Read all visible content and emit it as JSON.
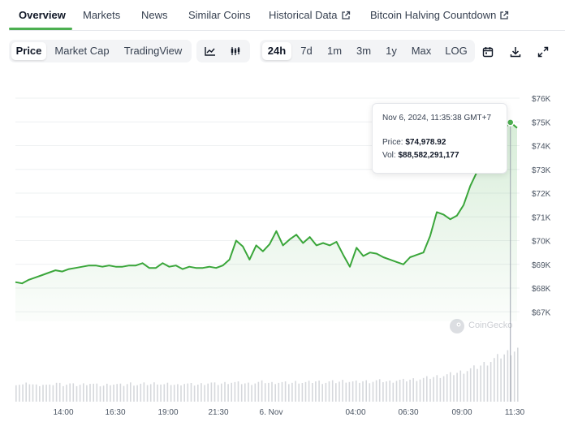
{
  "tabs": [
    {
      "label": "Overview",
      "active": true
    },
    {
      "label": "Markets"
    },
    {
      "label": "News"
    },
    {
      "label": "Similar Coins"
    },
    {
      "label": "Historical Data",
      "external": true
    },
    {
      "label": "Bitcoin Halving Countdown",
      "external": true
    }
  ],
  "toolbar": {
    "metrics": [
      "Price",
      "Market Cap",
      "TradingView"
    ],
    "metric_selected": "Price",
    "chart_style_icons": [
      "line-chart-icon",
      "candlestick-chart-icon"
    ],
    "ranges": [
      "24h",
      "7d",
      "1m",
      "3m",
      "1y",
      "Max",
      "LOG"
    ],
    "range_selected": "24h",
    "action_icons": [
      "calendar-icon",
      "download-icon",
      "expand-icon"
    ]
  },
  "tooltip": {
    "date": "Nov 6, 2024, 11:35:38 GMT+7",
    "price_label": "Price:",
    "price_value": "$74,978.92",
    "vol_label": "Vol:",
    "vol_value": "$88,582,291,177"
  },
  "watermark": "CoinGecko",
  "colors": {
    "accent": "#4caf50",
    "line": "#3aa63a",
    "fill": "#e8f5e9",
    "volume": "#d1d5db"
  },
  "chart_data": {
    "type": "area",
    "series": [
      {
        "values": [
          68.25,
          68.2,
          68.35,
          68.45,
          68.55,
          68.65,
          68.75,
          68.7,
          68.8,
          68.85,
          68.9,
          68.95,
          68.95,
          68.9,
          68.95,
          68.9,
          68.9,
          68.95,
          68.95,
          69.05,
          68.85,
          68.85,
          69.05,
          68.9,
          68.95,
          68.8,
          68.9,
          68.85,
          68.85,
          68.9,
          68.85,
          68.95,
          69.2,
          70.0,
          69.75,
          69.2,
          69.8,
          69.55,
          69.85,
          70.4,
          69.8,
          70.05,
          70.25,
          69.9,
          70.15,
          69.8,
          69.9,
          69.8,
          69.95,
          69.4,
          68.9,
          69.7,
          69.35,
          69.5,
          69.45,
          69.3,
          69.2,
          69.1,
          69.0,
          69.3,
          69.4,
          69.5,
          70.2,
          71.2,
          71.1,
          70.9,
          71.05,
          71.5,
          72.3,
          72.9,
          73.2,
          73.7,
          74.2,
          74.7,
          74.98,
          74.75
        ]
      }
    ],
    "volume_relative": [
      0.34,
      0.32,
      0.35,
      0.31,
      0.33,
      0.3,
      0.36,
      0.32,
      0.34,
      0.31,
      0.33,
      0.35,
      0.32,
      0.3,
      0.34,
      0.33,
      0.31,
      0.35,
      0.32,
      0.34,
      0.33,
      0.36,
      0.32,
      0.34,
      0.31,
      0.35,
      0.33,
      0.32,
      0.34,
      0.36,
      0.33,
      0.35,
      0.37,
      0.36,
      0.35,
      0.34,
      0.36,
      0.38,
      0.35,
      0.37,
      0.36,
      0.35,
      0.38,
      0.36,
      0.37,
      0.39,
      0.36,
      0.38,
      0.37,
      0.4,
      0.38,
      0.37,
      0.39,
      0.38,
      0.4,
      0.39,
      0.38,
      0.41,
      0.4,
      0.42,
      0.43,
      0.44,
      0.46,
      0.48,
      0.5,
      0.52,
      0.55,
      0.58,
      0.62,
      0.66,
      0.72,
      0.78,
      0.84,
      0.9,
      0.96,
      1.0
    ],
    "x_ticks": [
      "14:00",
      "16:30",
      "19:00",
      "21:30",
      "6. Nov",
      "04:00",
      "06:30",
      "09:00",
      "11:30"
    ],
    "y_ticks": [
      "$67K",
      "$68K",
      "$69K",
      "$70K",
      "$71K",
      "$72K",
      "$73K",
      "$74K",
      "$75K",
      "$76K"
    ],
    "ylim": [
      66.6,
      76
    ],
    "y_unit": "K USD",
    "grid": true,
    "legend": "none"
  }
}
